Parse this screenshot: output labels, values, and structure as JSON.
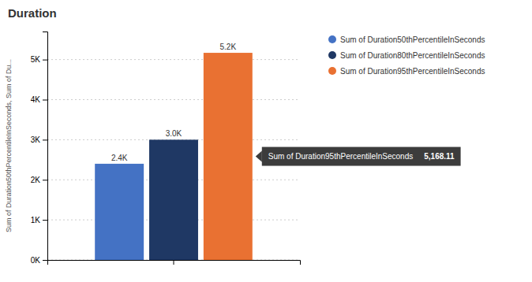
{
  "chart_data": {
    "type": "bar",
    "title": "Duration",
    "ylabel": "Sum of Duration50thPercentileInSeconds, Sum of Du...",
    "categories": [
      null
    ],
    "series": [
      {
        "name": "Sum of Duration50thPercentileInSeconds",
        "color": "#4472C4",
        "values": [
          2400
        ],
        "value_labels": [
          "2.4K"
        ]
      },
      {
        "name": "Sum of Duration80thPercentileInSeconds",
        "color": "#1F3864",
        "values": [
          3000
        ],
        "value_labels": [
          "3.0K"
        ]
      },
      {
        "name": "Sum of Duration95thPercentileInSeconds",
        "color": "#E97132",
        "values": [
          5168.11
        ],
        "value_labels": [
          "5.2K"
        ]
      }
    ],
    "ylim": [
      0,
      5700
    ],
    "yticks": [
      {
        "value": 0,
        "label": "0K"
      },
      {
        "value": 1000,
        "label": "1K"
      },
      {
        "value": 2000,
        "label": "2K"
      },
      {
        "value": 3000,
        "label": "3K"
      },
      {
        "value": 4000,
        "label": "4K"
      },
      {
        "value": 5000,
        "label": "5K"
      }
    ],
    "grid": true,
    "legend": "right",
    "data_labels": true,
    "annotations": [
      {
        "text": "Sum of Duration95thPercentileInSeconds",
        "value": 5168.11,
        "label": "5,168.11"
      }
    ]
  }
}
